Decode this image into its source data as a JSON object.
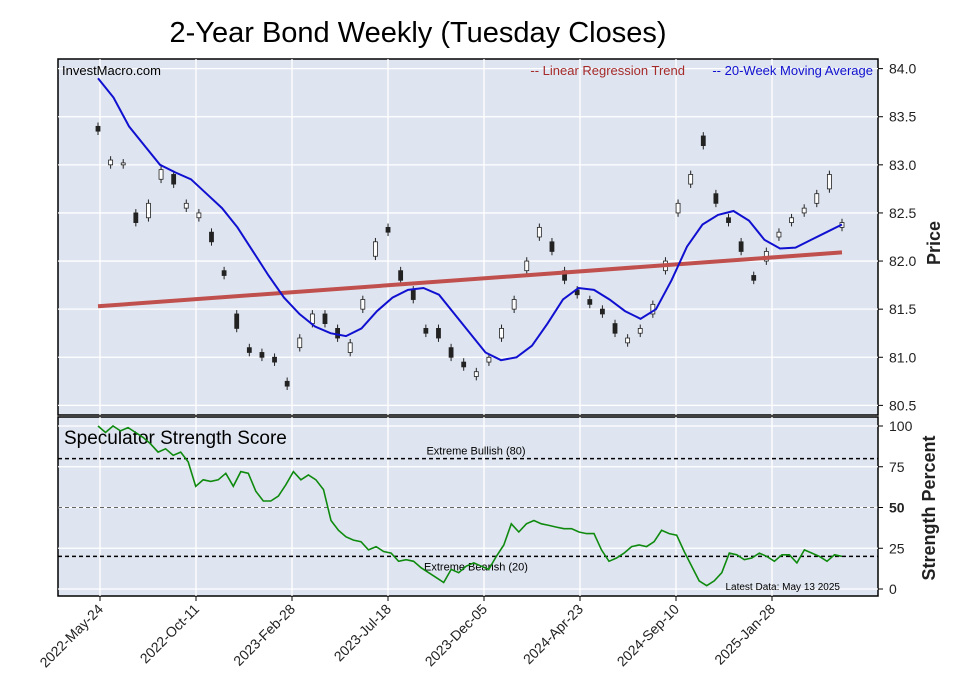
{
  "chart_data": {
    "title": "2-Year Bond Weekly (Tuesday Closes)",
    "source": "InvestMacro.com",
    "x_tick_labels": [
      "2022-May-24",
      "2022-Oct-11",
      "2023-Feb-28",
      "2023-Jul-18",
      "2023-Dec-05",
      "2024-Apr-23",
      "2024-Sep-10",
      "2025-Jan-28"
    ],
    "price_panel": {
      "type": "candlestick",
      "ylabel": "Price",
      "ylim": [
        80.4,
        84.1
      ],
      "yticks": [
        "80.5",
        "81.0",
        "81.5",
        "82.0",
        "82.5",
        "83.0",
        "83.5",
        "84.0"
      ],
      "legend": {
        "trend": "-- Linear Regression Trend",
        "ma": "-- 20-Week Moving Average"
      },
      "colors": {
        "trend": "#c0504d",
        "ma": "#1010d0",
        "up": "#ffffff",
        "down": "#222222"
      },
      "trend_line": {
        "start": 81.53,
        "end": 82.09
      },
      "moving_average": [
        83.9,
        83.7,
        83.4,
        83.2,
        83.0,
        82.92,
        82.85,
        82.7,
        82.55,
        82.35,
        82.1,
        81.85,
        81.62,
        81.45,
        81.32,
        81.25,
        81.22,
        81.3,
        81.48,
        81.62,
        81.7,
        81.72,
        81.65,
        81.45,
        81.25,
        81.05,
        80.97,
        81.0,
        81.12,
        81.35,
        81.6,
        81.72,
        81.7,
        81.6,
        81.48,
        81.4,
        81.5,
        81.8,
        82.15,
        82.38,
        82.48,
        82.52,
        82.42,
        82.22,
        82.13,
        82.14,
        82.22,
        82.3,
        82.38
      ],
      "closes": [
        83.35,
        83.05,
        83.02,
        82.4,
        82.6,
        82.95,
        82.8,
        82.6,
        82.5,
        82.2,
        81.85,
        81.3,
        81.05,
        81.0,
        80.95,
        80.7,
        81.2,
        81.45,
        81.35,
        81.2,
        81.15,
        81.6,
        82.2,
        82.3,
        81.8,
        81.6,
        81.25,
        81.2,
        81.0,
        80.9,
        80.85,
        81.0,
        81.3,
        81.6,
        82.0,
        82.35,
        82.1,
        81.8,
        81.65,
        81.55,
        81.45,
        81.25,
        81.2,
        81.3,
        81.55,
        82.0,
        82.6,
        82.9,
        83.2,
        82.6,
        82.4,
        82.1,
        81.8,
        82.1,
        82.3,
        82.45,
        82.55,
        82.7,
        82.9,
        82.4
      ],
      "opens": [
        83.4,
        83.0,
        83.0,
        82.5,
        82.45,
        82.85,
        82.9,
        82.55,
        82.45,
        82.3,
        81.9,
        81.45,
        81.1,
        81.05,
        81.0,
        80.75,
        81.1,
        81.35,
        81.45,
        81.3,
        81.05,
        81.5,
        82.05,
        82.35,
        81.9,
        81.7,
        81.3,
        81.3,
        81.1,
        80.95,
        80.8,
        80.95,
        81.2,
        81.5,
        81.9,
        82.25,
        82.2,
        81.9,
        81.7,
        81.6,
        81.5,
        81.35,
        81.15,
        81.25,
        81.45,
        81.9,
        82.5,
        82.8,
        83.3,
        82.7,
        82.45,
        82.2,
        81.85,
        82.0,
        82.25,
        82.4,
        82.5,
        82.6,
        82.75,
        82.35
      ]
    },
    "strength_panel": {
      "type": "line",
      "title": "Speculator Strength Score",
      "ylabel": "Strength Percent",
      "ylim": [
        0,
        100
      ],
      "yticks": [
        "0",
        "25",
        "50",
        "75",
        "100"
      ],
      "extreme_bullish": {
        "value": 80,
        "label": "Extreme Bullish (80)"
      },
      "extreme_bearish": {
        "value": 20,
        "label": "Extreme Bearish (20)"
      },
      "midline": 50,
      "note": "Latest Data: May 13 2025",
      "color": "#0f8a0f",
      "values": [
        100,
        96,
        100,
        97,
        99,
        96,
        93,
        89,
        84,
        86,
        82,
        84,
        78,
        63,
        67,
        66,
        67,
        71,
        63,
        72,
        71,
        60,
        54,
        54,
        57,
        64,
        72,
        67,
        70,
        67,
        61,
        42,
        36,
        32,
        30,
        29,
        24,
        26,
        23,
        22,
        17,
        18,
        17,
        13,
        10,
        7,
        4,
        12,
        10,
        14,
        16,
        14,
        12,
        20,
        27,
        40,
        35,
        40,
        42,
        40,
        39,
        38,
        37,
        37,
        35,
        34,
        34,
        24,
        17,
        19,
        22,
        26,
        27,
        26,
        29,
        36,
        34,
        33,
        23,
        14,
        5,
        2,
        5,
        10,
        22,
        21,
        18,
        19,
        22,
        20,
        17,
        21,
        21,
        16,
        24,
        22,
        20,
        17,
        21,
        20
      ],
      "values_note": "weekly strength score series"
    }
  }
}
